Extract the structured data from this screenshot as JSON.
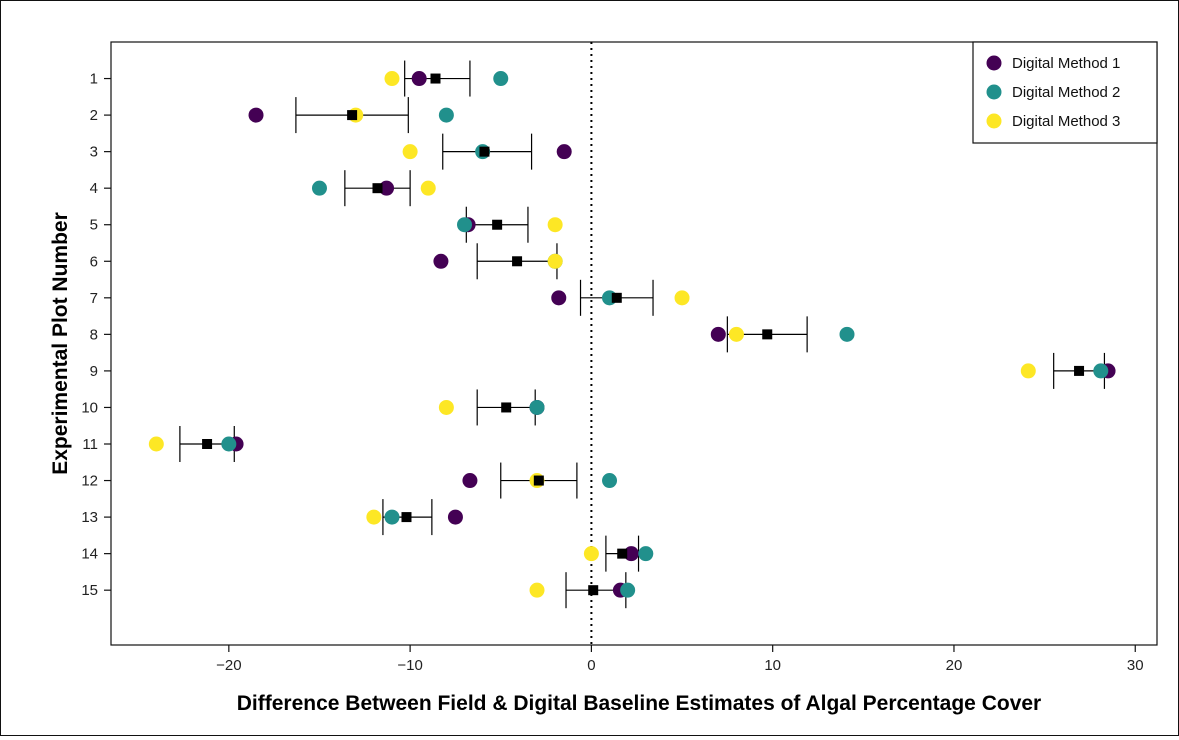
{
  "chart_data": {
    "type": "scatter",
    "xlabel": "Difference Between Field & Digital Baseline Estimates of Algal Percentage Cover",
    "ylabel": "Experimental Plot Number",
    "xlim": [
      -26.5,
      31.2
    ],
    "ylim": [
      0,
      16.5
    ],
    "x_ticks": [
      -20,
      -10,
      0,
      10,
      20,
      30
    ],
    "y_ticks": [
      1,
      2,
      3,
      4,
      5,
      6,
      7,
      8,
      9,
      10,
      11,
      12,
      13,
      14,
      15
    ],
    "y_axis_inverted": true,
    "reference_line": {
      "x": 0,
      "style": "dotted"
    },
    "grid": false,
    "legend_position": "top-right",
    "series": [
      {
        "name": "Digital Method 1",
        "color": "#440154",
        "points": [
          {
            "plot": 1,
            "x": -9.5
          },
          {
            "plot": 2,
            "x": -18.5
          },
          {
            "plot": 3,
            "x": -1.5
          },
          {
            "plot": 4,
            "x": -11.3
          },
          {
            "plot": 5,
            "x": -6.8
          },
          {
            "plot": 6,
            "x": -8.3
          },
          {
            "plot": 7,
            "x": -1.8
          },
          {
            "plot": 8,
            "x": 7.0
          },
          {
            "plot": 9,
            "x": 28.5
          },
          {
            "plot": 10,
            "x": -3.0
          },
          {
            "plot": 11,
            "x": -19.6
          },
          {
            "plot": 12,
            "x": -6.7
          },
          {
            "plot": 13,
            "x": -7.5
          },
          {
            "plot": 14,
            "x": 2.2
          },
          {
            "plot": 15,
            "x": 1.6
          }
        ]
      },
      {
        "name": "Digital Method 2",
        "color": "#21908C",
        "points": [
          {
            "plot": 1,
            "x": -5.0
          },
          {
            "plot": 2,
            "x": -8.0
          },
          {
            "plot": 3,
            "x": -6.0
          },
          {
            "plot": 4,
            "x": -15.0
          },
          {
            "plot": 5,
            "x": -7.0
          },
          {
            "plot": 6,
            "x": -2.0
          },
          {
            "plot": 7,
            "x": 1.0
          },
          {
            "plot": 8,
            "x": 14.1
          },
          {
            "plot": 9,
            "x": 28.1
          },
          {
            "plot": 10,
            "x": -3.0
          },
          {
            "plot": 11,
            "x": -20.0
          },
          {
            "plot": 12,
            "x": 1.0
          },
          {
            "plot": 13,
            "x": -11.0
          },
          {
            "plot": 14,
            "x": 3.0
          },
          {
            "plot": 15,
            "x": 2.0
          }
        ]
      },
      {
        "name": "Digital Method 3",
        "color": "#FDE725",
        "points": [
          {
            "plot": 1,
            "x": -11.0
          },
          {
            "plot": 2,
            "x": -13.0
          },
          {
            "plot": 3,
            "x": -10.0
          },
          {
            "plot": 4,
            "x": -9.0
          },
          {
            "plot": 5,
            "x": -2.0
          },
          {
            "plot": 6,
            "x": -2.0
          },
          {
            "plot": 7,
            "x": 5.0
          },
          {
            "plot": 8,
            "x": 8.0
          },
          {
            "plot": 9,
            "x": 24.1
          },
          {
            "plot": 10,
            "x": -8.0
          },
          {
            "plot": 11,
            "x": -24.0
          },
          {
            "plot": 12,
            "x": -3.0
          },
          {
            "plot": 13,
            "x": -12.0
          },
          {
            "plot": 14,
            "x": 0.0
          },
          {
            "plot": 15,
            "x": -3.0
          }
        ]
      }
    ],
    "mean_with_error": {
      "marker": "square",
      "color": "#000000",
      "points": [
        {
          "plot": 1,
          "mean": -8.6,
          "low": -10.3,
          "high": -6.7
        },
        {
          "plot": 2,
          "mean": -13.2,
          "low": -16.3,
          "high": -10.1
        },
        {
          "plot": 3,
          "mean": -5.9,
          "low": -8.2,
          "high": -3.3
        },
        {
          "plot": 4,
          "mean": -11.8,
          "low": -13.6,
          "high": -10.0
        },
        {
          "plot": 5,
          "mean": -5.2,
          "low": -6.9,
          "high": -3.5
        },
        {
          "plot": 6,
          "mean": -4.1,
          "low": -6.3,
          "high": -1.9
        },
        {
          "plot": 7,
          "mean": 1.4,
          "low": -0.6,
          "high": 3.4
        },
        {
          "plot": 8,
          "mean": 9.7,
          "low": 7.5,
          "high": 11.9
        },
        {
          "plot": 9,
          "mean": 26.9,
          "low": 25.5,
          "high": 28.3
        },
        {
          "plot": 10,
          "mean": -4.7,
          "low": -6.3,
          "high": -3.1
        },
        {
          "plot": 11,
          "mean": -21.2,
          "low": -22.7,
          "high": -19.7
        },
        {
          "plot": 12,
          "mean": -2.9,
          "low": -5.0,
          "high": -0.8
        },
        {
          "plot": 13,
          "mean": -10.2,
          "low": -11.5,
          "high": -8.8
        },
        {
          "plot": 14,
          "mean": 1.7,
          "low": 0.8,
          "high": 2.6
        },
        {
          "plot": 15,
          "mean": 0.1,
          "low": -1.4,
          "high": 1.9
        }
      ]
    }
  }
}
